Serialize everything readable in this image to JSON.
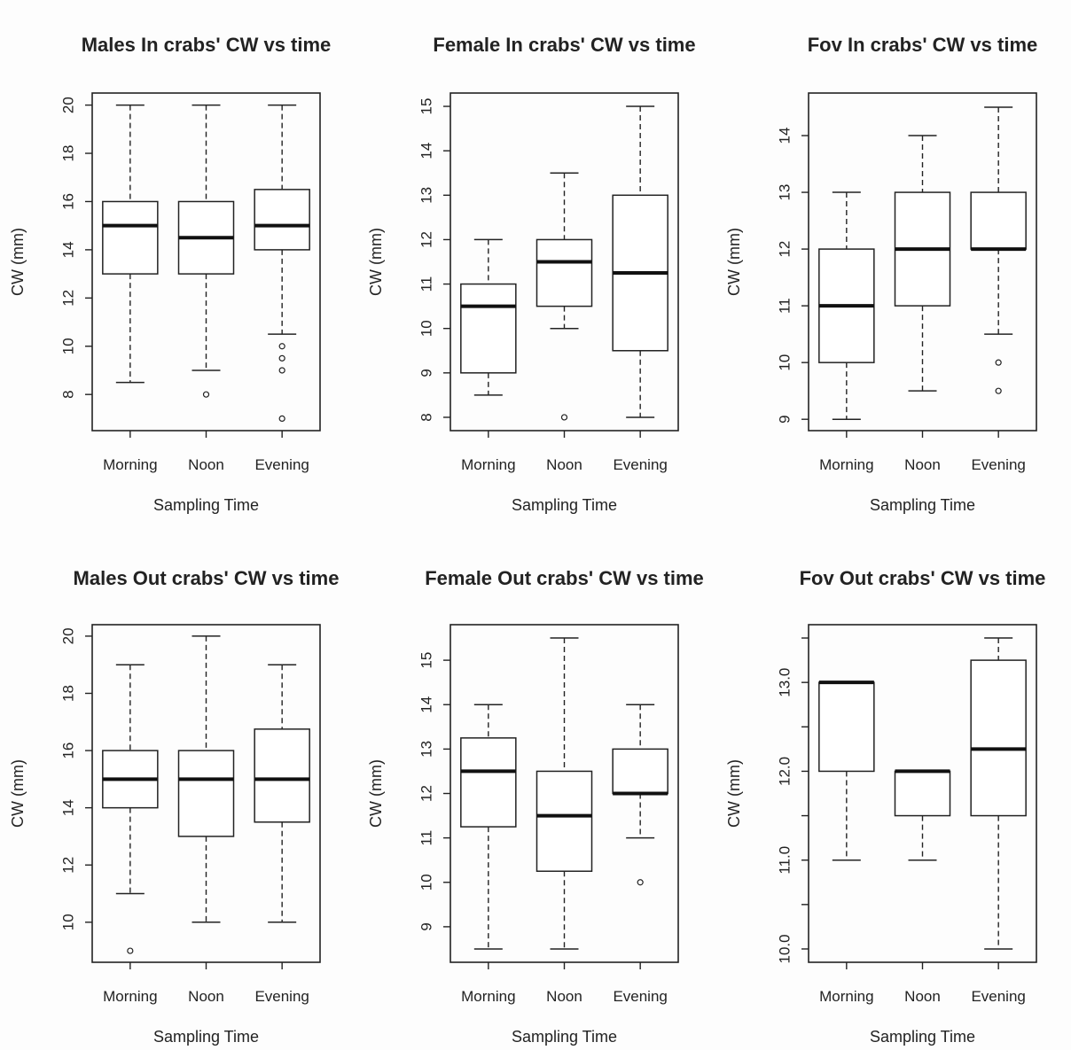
{
  "chart_data": [
    {
      "type": "box",
      "title": "Males In crabs' CW vs time",
      "xlabel": "Sampling Time",
      "ylabel": "CW (mm)",
      "ylim": [
        6.5,
        20.5
      ],
      "yticks": [
        8,
        10,
        12,
        14,
        16,
        18,
        20
      ],
      "categories": [
        "Morning",
        "Noon",
        "Evening"
      ],
      "boxes": [
        {
          "whislo": 8.5,
          "q1": 13,
          "med": 15,
          "q3": 16,
          "whishi": 20,
          "fliers": []
        },
        {
          "whislo": 9,
          "q1": 13,
          "med": 14.5,
          "q3": 16,
          "whishi": 20,
          "fliers": [
            8
          ]
        },
        {
          "whislo": 10.5,
          "q1": 14,
          "med": 15,
          "q3": 16.5,
          "whishi": 20,
          "fliers": [
            10,
            9.5,
            9,
            7
          ]
        }
      ]
    },
    {
      "type": "box",
      "title": "Female In crabs' CW vs time",
      "xlabel": "Sampling Time",
      "ylabel": "CW (mm)",
      "ylim": [
        7.7,
        15.3
      ],
      "yticks": [
        8,
        9,
        10,
        11,
        12,
        13,
        14,
        15
      ],
      "categories": [
        "Morning",
        "Noon",
        "Evening"
      ],
      "boxes": [
        {
          "whislo": 8.5,
          "q1": 9,
          "med": 10.5,
          "q3": 11,
          "whishi": 12,
          "fliers": []
        },
        {
          "whislo": 10,
          "q1": 10.5,
          "med": 11.5,
          "q3": 12,
          "whishi": 13.5,
          "fliers": [
            8
          ]
        },
        {
          "whislo": 8,
          "q1": 9.5,
          "med": 11.25,
          "q3": 13,
          "whishi": 15,
          "fliers": []
        }
      ]
    },
    {
      "type": "box",
      "title": "Fov In crabs' CW vs time",
      "xlabel": "Sampling Time",
      "ylabel": "CW (mm)",
      "ylim": [
        8.8,
        14.75
      ],
      "yticks": [
        9,
        10,
        11,
        12,
        13,
        14
      ],
      "categories": [
        "Morning",
        "Noon",
        "Evening"
      ],
      "boxes": [
        {
          "whislo": 9,
          "q1": 10,
          "med": 11,
          "q3": 12,
          "whishi": 13,
          "fliers": []
        },
        {
          "whislo": 9.5,
          "q1": 11,
          "med": 12,
          "q3": 13,
          "whishi": 14,
          "fliers": []
        },
        {
          "whislo": 10.5,
          "q1": 12,
          "med": 12,
          "q3": 13,
          "whishi": 14.5,
          "fliers": [
            10,
            9.5
          ]
        }
      ]
    },
    {
      "type": "box",
      "title": "Males Out crabs' CW vs time",
      "xlabel": "Sampling Time",
      "ylabel": "CW (mm)",
      "ylim": [
        8.6,
        20.4
      ],
      "yticks": [
        10,
        12,
        14,
        16,
        18,
        20
      ],
      "categories": [
        "Morning",
        "Noon",
        "Evening"
      ],
      "boxes": [
        {
          "whislo": 11,
          "q1": 14,
          "med": 15,
          "q3": 16,
          "whishi": 19,
          "fliers": [
            9
          ]
        },
        {
          "whislo": 10,
          "q1": 13,
          "med": 15,
          "q3": 16,
          "whishi": 20,
          "fliers": []
        },
        {
          "whislo": 10,
          "q1": 13.5,
          "med": 15,
          "q3": 16.75,
          "whishi": 19,
          "fliers": []
        }
      ]
    },
    {
      "type": "box",
      "title": "Female Out crabs' CW vs time",
      "xlabel": "Sampling Time",
      "ylabel": "CW (mm)",
      "ylim": [
        8.2,
        15.8
      ],
      "yticks": [
        9,
        10,
        11,
        12,
        13,
        14,
        15
      ],
      "categories": [
        "Morning",
        "Noon",
        "Evening"
      ],
      "boxes": [
        {
          "whislo": 8.5,
          "q1": 11.25,
          "med": 12.5,
          "q3": 13.25,
          "whishi": 14,
          "fliers": []
        },
        {
          "whislo": 8.5,
          "q1": 10.25,
          "med": 11.5,
          "q3": 12.5,
          "whishi": 15.5,
          "fliers": []
        },
        {
          "whislo": 11,
          "q1": 12,
          "med": 12,
          "q3": 13,
          "whishi": 14,
          "fliers": [
            10
          ]
        }
      ]
    },
    {
      "type": "box",
      "title": "Fov Out crabs' CW vs time",
      "xlabel": "Sampling Time",
      "ylabel": "CW (mm)",
      "ylim": [
        9.85,
        13.65
      ],
      "yticks": [
        10,
        10.5,
        11,
        11.5,
        12,
        12.5,
        13,
        13.5
      ],
      "ytick_labels": [
        "10.0",
        "",
        "11.0",
        "",
        "12.0",
        "",
        "13.0",
        ""
      ],
      "categories": [
        "Morning",
        "Noon",
        "Evening"
      ],
      "boxes": [
        {
          "whislo": 11,
          "q1": 12,
          "med": 13,
          "q3": 13,
          "whishi": 13,
          "fliers": []
        },
        {
          "whislo": 11,
          "q1": 11.5,
          "med": 12,
          "q3": 12,
          "whishi": 12,
          "fliers": []
        },
        {
          "whislo": 10,
          "q1": 11.5,
          "med": 12.25,
          "q3": 13.25,
          "whishi": 13.5,
          "fliers": []
        }
      ]
    }
  ]
}
